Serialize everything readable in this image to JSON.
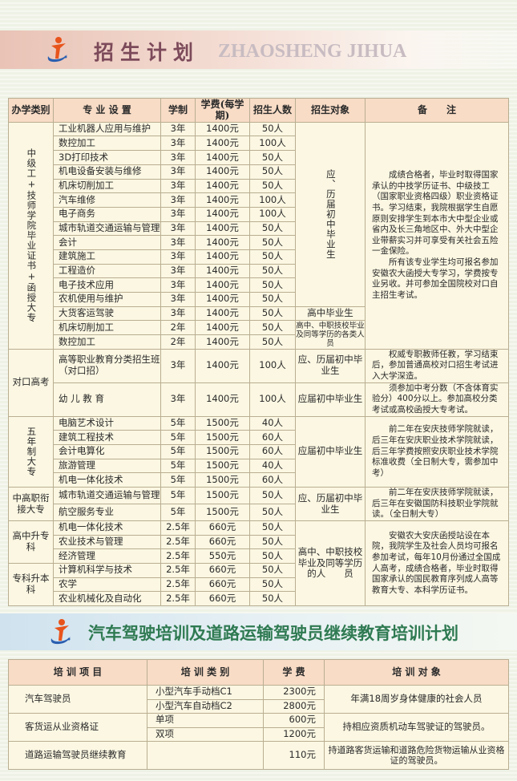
{
  "banner1": {
    "title": "招生计划",
    "subtitle": "ZHAOSHENG JIHUA"
  },
  "banner2": {
    "title": "汽车驾驶培训及道路运输驾驶员继续教育培训计划"
  },
  "colors": {
    "header_bg": "#f8dcc6",
    "body_bg": "#fbf7e2",
    "title1": "#7c4a5a",
    "title2": "#2f7a52"
  },
  "main_table": {
    "headers": [
      "办学类别",
      "专 业 设 置",
      "学制",
      "学费(每学期)",
      "招生人数",
      "招生对象",
      "备　　注"
    ],
    "rows": [
      [
        "工业机器人应用与维护",
        "3年",
        "1400元",
        "50人"
      ],
      [
        "数控加工",
        "3年",
        "1400元",
        "100人"
      ],
      [
        "3D打印技术",
        "3年",
        "1400元",
        "50人"
      ],
      [
        "机电设备安装与维修",
        "3年",
        "1400元",
        "50人"
      ],
      [
        "机床切削加工",
        "3年",
        "1400元",
        "50人"
      ],
      [
        "汽车维修",
        "3年",
        "1400元",
        "100人"
      ],
      [
        "电子商务",
        "3年",
        "1400元",
        "100人"
      ],
      [
        "城市轨道交通运输与管理",
        "3年",
        "1400元",
        "50人"
      ],
      [
        "会计",
        "3年",
        "1400元",
        "50人"
      ],
      [
        "建筑施工",
        "3年",
        "1400元",
        "50人"
      ],
      [
        "工程造价",
        "3年",
        "1400元",
        "50人"
      ],
      [
        "电子技术应用",
        "3年",
        "1400元",
        "50人"
      ],
      [
        "农机使用与维护",
        "3年",
        "1400元",
        "50人"
      ],
      [
        "大货客运驾驶",
        "3年",
        "1400元",
        "50人"
      ],
      [
        "机床切削加工",
        "2年",
        "1400元",
        "50人"
      ],
      [
        "数控加工",
        "2年",
        "1400元",
        "50人"
      ],
      [
        "高等职业教育分类招生班（对口招）",
        "3年",
        "1400元",
        "100人"
      ],
      [
        "幼 儿 教 育",
        "3年",
        "1400元",
        "100人"
      ],
      [
        "电脑艺术设计",
        "5年",
        "1500元",
        "40人"
      ],
      [
        "建筑工程技术",
        "5年",
        "1500元",
        "60人"
      ],
      [
        "会计电算化",
        "5年",
        "1500元",
        "60人"
      ],
      [
        "旅游管理",
        "5年",
        "1500元",
        "40人"
      ],
      [
        "机电一体化技术",
        "5年",
        "1500元",
        "60人"
      ],
      [
        "城市轨道交通运输与管理",
        "5年",
        "1500元",
        "50人"
      ],
      [
        "航空服务专业",
        "5年",
        "1500元",
        "50人"
      ],
      [
        "机电一体化技术",
        "2.5年",
        "660元",
        "50人"
      ],
      [
        "农业技术与管理",
        "2.5年",
        "660元",
        "50人"
      ],
      [
        "经济管理",
        "2.5年",
        "550元",
        "50人"
      ],
      [
        "计算机科学与技术",
        "2.5年",
        "660元",
        "50人"
      ],
      [
        "农学",
        "2.5年",
        "660元",
        "50人"
      ],
      [
        "农业机械化及自动化",
        "2.5年",
        "660元",
        "50人"
      ]
    ],
    "categories": [
      {
        "text": "中级工+技师学院毕业证书+函授大专",
        "span": 16,
        "vertical": true
      },
      {
        "text": "对口高考",
        "span": 2
      },
      {
        "text": "五年制大专",
        "span": 5,
        "vertical": true
      },
      {
        "text": "中高职衔接大专",
        "span": 2
      },
      {
        "text": "高中升专科",
        "span": 3
      },
      {
        "text": "专科升本科",
        "span": 3
      }
    ],
    "targets": [
      {
        "text": "应、历届初中毕业生",
        "span": 13,
        "vertical": true
      },
      {
        "text": "高中毕业生",
        "span": 1
      },
      {
        "text": "高中、中职技校毕业及同等学历的各类人员",
        "span": 2,
        "small": true
      },
      {
        "text": "应、历届初中毕业生",
        "span": 1
      },
      {
        "text": "应届初中毕业生",
        "span": 1
      },
      {
        "text": "应届初中毕业生",
        "span": 5
      },
      {
        "text": "应、历届初中毕业生",
        "span": 2
      },
      {
        "text": "高中、中职技校毕业及同等学历的人　　员",
        "span": 6
      }
    ],
    "notes": [
      {
        "span": 16,
        "paragraphs": [
          "成绩合格者，毕业时取得国家承认的中技学历证书、中级技工（国家职业资格四级）职业资格证书。学习结束，我院根据学生自愿原则安排学生到本市大中型企业或省内及长三角地区中、外大中型企业带薪实习并可享受有关社会五险一金保险。",
          "所有该专业学生均可报名参加安徽农大函授大专学习，学费按专业另收。并可参加全国院校对口自主招生考试。"
        ]
      },
      {
        "span": 1,
        "paragraphs": [
          "权威专职教师任教，学习结束后，参加普通高校对口招生考试进入大学深造。"
        ]
      },
      {
        "span": 1,
        "paragraphs": [
          "须参加中考分数（不含体育实验分）400分以上。参加高校分类考试或高校函授大专考试。"
        ]
      },
      {
        "span": 5,
        "paragraphs": [
          "前二年在安庆技师学院就读，后三年在安庆职业技术学院就读，后三年学费按照安庆职业技术学院标准收费（全日制大专，需参加中考）"
        ]
      },
      {
        "span": 2,
        "paragraphs": [
          "前二年在安庆技师学院就读，后三年在安徽国防科技职业学院就读。（全日制大专）"
        ]
      },
      {
        "span": 6,
        "paragraphs": [
          "安徽农大安庆函授站设在本院，我院学生及社会人员均可报名参加考试，每年10月份通过全国成人高考，成绩合格者，毕业时取得国家承认的国民教育序列成人高等教育大专、本科学历证书。"
        ]
      }
    ]
  },
  "training_table": {
    "headers": [
      "培 训 项 目",
      "培 训 类 别",
      "学 费",
      "培 训 对 象"
    ],
    "items": [
      {
        "name": "汽车驾驶员",
        "types": [
          {
            "type": "小型汽车手动档C1",
            "fee": "2300元"
          },
          {
            "type": "小型汽车自动档C2",
            "fee": "2800元"
          }
        ],
        "target": "年满18周岁身体健康的社会人员"
      },
      {
        "name": "客货运从业资格证",
        "types": [
          {
            "type": "单项",
            "fee": "600元"
          },
          {
            "type": "双项",
            "fee": "1200元"
          }
        ],
        "target": "持相应资质机动车驾驶证的驾驶员。"
      },
      {
        "name": "道路运输驾驶员继续教育",
        "types": [
          {
            "type": "",
            "fee": "110元"
          }
        ],
        "target": "持道路客货运输和道路危险货物运输从业资格证的驾驶员。"
      }
    ]
  }
}
